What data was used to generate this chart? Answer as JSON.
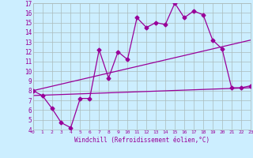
{
  "xlabel": "Windchill (Refroidissement éolien,°C)",
  "xlim": [
    0,
    23
  ],
  "ylim": [
    4,
    17
  ],
  "yticks": [
    4,
    5,
    6,
    7,
    8,
    9,
    10,
    11,
    12,
    13,
    14,
    15,
    16,
    17
  ],
  "xticks": [
    0,
    1,
    2,
    3,
    4,
    5,
    6,
    7,
    8,
    9,
    10,
    11,
    12,
    13,
    14,
    15,
    16,
    17,
    18,
    19,
    20,
    21,
    22,
    23
  ],
  "bg_color": "#cceeff",
  "line_color": "#990099",
  "grid_color": "#aabbbb",
  "series1_x": [
    0,
    1,
    2,
    3,
    4,
    5,
    6,
    7,
    8,
    9,
    10,
    11,
    12,
    13,
    14,
    15,
    16,
    17,
    18,
    19,
    20,
    21,
    22,
    23
  ],
  "series1_y": [
    8.0,
    7.5,
    6.2,
    4.7,
    4.2,
    7.2,
    7.2,
    12.2,
    9.3,
    12.0,
    11.2,
    15.5,
    14.5,
    15.0,
    14.8,
    17.0,
    15.5,
    16.2,
    15.8,
    13.2,
    12.3,
    8.3,
    8.3,
    8.5
  ],
  "series2_x": [
    0,
    23
  ],
  "series2_y": [
    8.0,
    13.2
  ],
  "series3_x": [
    0,
    23
  ],
  "series3_y": [
    7.5,
    8.3
  ],
  "marker": "D",
  "marker_size": 2.5,
  "line_width": 0.9
}
